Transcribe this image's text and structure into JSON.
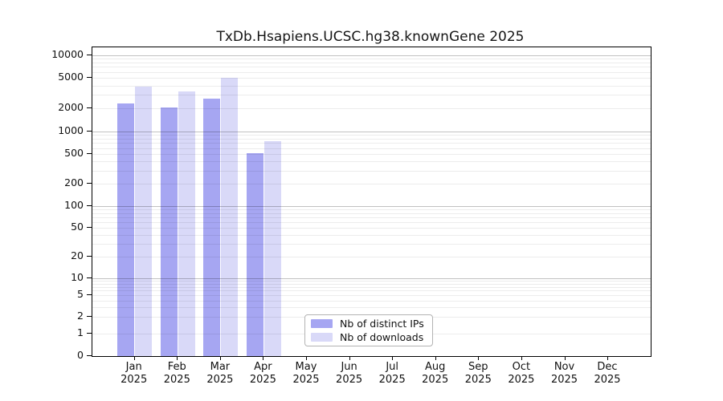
{
  "chart_data": {
    "type": "bar",
    "title": "TxDb.Hsapiens.UCSC.hg38.knownGene 2025",
    "categories": [
      "Jan 2025",
      "Feb 2025",
      "Mar 2025",
      "Apr 2025",
      "May 2025",
      "Jun 2025",
      "Jul 2025",
      "Aug 2025",
      "Sep 2025",
      "Oct 2025",
      "Nov 2025",
      "Dec 2025"
    ],
    "series": [
      {
        "name": "Nb of distinct IPs",
        "color": "#a6a6f2",
        "values": [
          2320,
          2070,
          2720,
          515,
          null,
          null,
          null,
          null,
          null,
          null,
          null,
          null
        ]
      },
      {
        "name": "Nb of downloads",
        "color": "#d9d9f8",
        "values": [
          3890,
          3330,
          5050,
          750,
          null,
          null,
          null,
          null,
          null,
          null,
          null,
          null
        ]
      }
    ],
    "xlabel": "",
    "ylabel": "",
    "yscale": "symlog",
    "yticks": [
      0,
      1,
      2,
      5,
      10,
      20,
      50,
      100,
      200,
      500,
      1000,
      2000,
      5000,
      10000
    ],
    "ylim": [
      0,
      12500
    ],
    "grid": {
      "orientation": "horizontal",
      "major_at_decades": true,
      "minor_per_decade": "2-9"
    },
    "legend": {
      "position": "lower center inside"
    }
  },
  "axis": {
    "line_color": "#000000",
    "major_grid_color": "#c2c2c2",
    "minor_grid_color": "#ececec"
  }
}
